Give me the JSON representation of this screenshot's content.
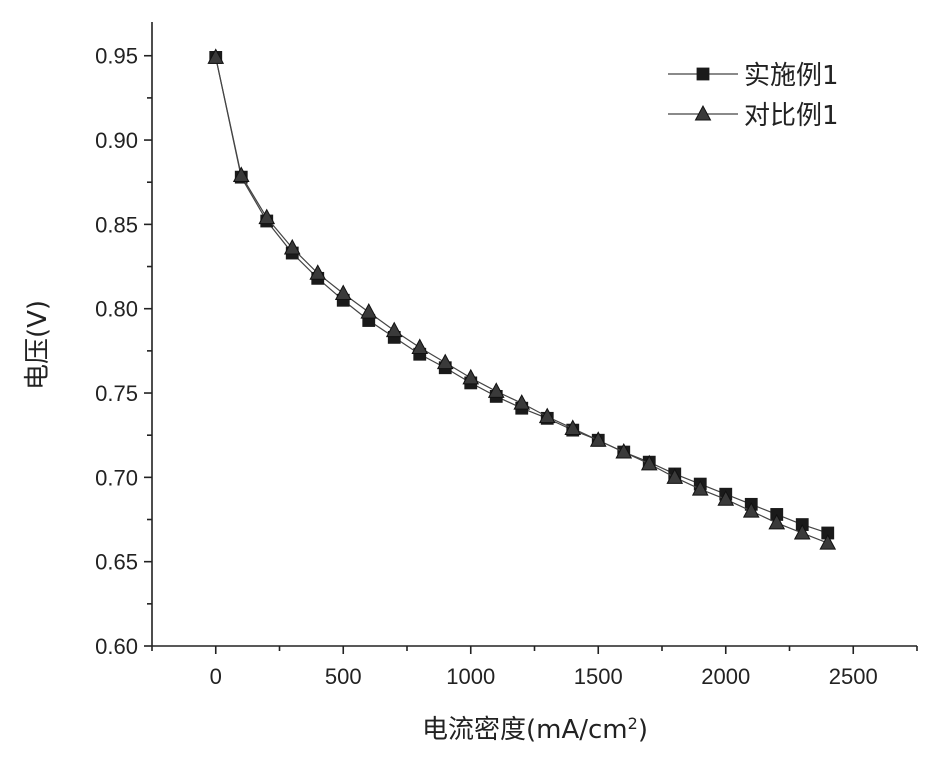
{
  "chart_data": {
    "type": "line",
    "title": "",
    "xlabel": "电流密度(mA/cm",
    "xlabel_sup": "2",
    "xlabel_end": ")",
    "ylabel": "电压(V)",
    "xlim": [
      -250,
      2750
    ],
    "ylim": [
      0.6,
      0.97
    ],
    "xticks": [
      0,
      500,
      1000,
      1500,
      2000,
      2500
    ],
    "yticks": [
      0.6,
      0.65,
      0.7,
      0.75,
      0.8,
      0.85,
      0.9,
      0.95
    ],
    "ytick_labels": [
      "0.60",
      "0.65",
      "0.70",
      "0.75",
      "0.80",
      "0.85",
      "0.90",
      "0.95"
    ],
    "grid": false,
    "legend_position": "top-right",
    "x": [
      0,
      100,
      200,
      300,
      400,
      500,
      600,
      700,
      800,
      900,
      1000,
      1100,
      1200,
      1300,
      1400,
      1500,
      1600,
      1700,
      1800,
      1900,
      2000,
      2100,
      2200,
      2300,
      2400
    ],
    "series": [
      {
        "name": "实施例1",
        "marker": "square",
        "color": "#1a1a1a",
        "values": [
          0.949,
          0.878,
          0.852,
          0.833,
          0.818,
          0.805,
          0.793,
          0.783,
          0.773,
          0.765,
          0.756,
          0.748,
          0.741,
          0.735,
          0.728,
          0.722,
          0.715,
          0.709,
          0.702,
          0.696,
          0.69,
          0.684,
          0.678,
          0.672,
          0.667
        ]
      },
      {
        "name": "对比例1",
        "marker": "triangle",
        "color": "#3a3a3a",
        "values": [
          0.949,
          0.879,
          0.854,
          0.836,
          0.821,
          0.809,
          0.798,
          0.787,
          0.777,
          0.768,
          0.759,
          0.751,
          0.744,
          0.736,
          0.729,
          0.722,
          0.715,
          0.708,
          0.7,
          0.693,
          0.687,
          0.68,
          0.673,
          0.667,
          0.661
        ]
      }
    ]
  }
}
